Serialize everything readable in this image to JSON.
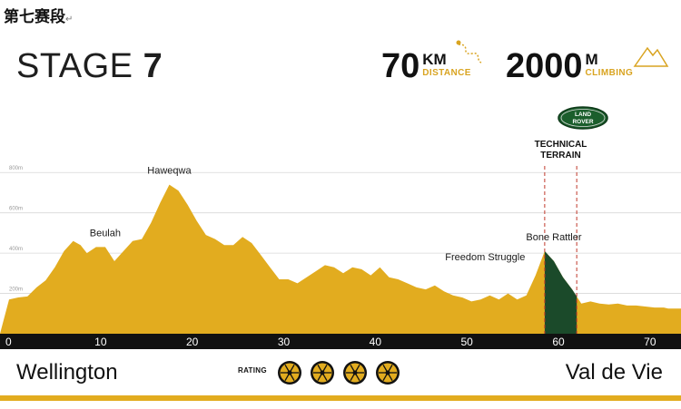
{
  "doc_heading": "第七赛段",
  "stage": {
    "word": "STAGE",
    "number": "7"
  },
  "distance": {
    "value": "70",
    "unit": "KM",
    "label": "DISTANCE"
  },
  "climbing": {
    "value": "2000",
    "unit": "M",
    "label": "CLIMBING"
  },
  "sponsor": {
    "line1": "LAND",
    "line2": "ROVER"
  },
  "section_label": {
    "line1": "TECHNICAL",
    "line2": "TERRAIN"
  },
  "start_town": "Wellington",
  "finish_town": "Val de Vie",
  "rating": {
    "label": "RATING",
    "value": 4,
    "max": 4
  },
  "colors": {
    "profile": "#e2ac1f",
    "technical": "#1b4a2a",
    "axis": "#111111",
    "accent": "#d9a421"
  },
  "chart_data": {
    "type": "area",
    "x_unit": "km",
    "xlim": [
      0,
      72
    ],
    "x_ticks": [
      0,
      10,
      20,
      30,
      40,
      50,
      60,
      70
    ],
    "ylim": [
      0,
      900
    ],
    "y_ticks": [
      {
        "value": 200,
        "label": "200m"
      },
      {
        "value": 400,
        "label": "400m"
      },
      {
        "value": 600,
        "label": "600m"
      },
      {
        "value": 800,
        "label": "800m"
      }
    ],
    "grid": true,
    "profile": [
      [
        0,
        170
      ],
      [
        1,
        180
      ],
      [
        2,
        185
      ],
      [
        3,
        230
      ],
      [
        4,
        265
      ],
      [
        5,
        330
      ],
      [
        6,
        410
      ],
      [
        7,
        460
      ],
      [
        7.8,
        440
      ],
      [
        8.5,
        400
      ],
      [
        9.5,
        430
      ],
      [
        10.5,
        430
      ],
      [
        11.5,
        360
      ],
      [
        12.5,
        410
      ],
      [
        13.5,
        460
      ],
      [
        14.5,
        470
      ],
      [
        15.5,
        550
      ],
      [
        16.5,
        650
      ],
      [
        17.5,
        740
      ],
      [
        18.5,
        710
      ],
      [
        19.5,
        640
      ],
      [
        20.5,
        560
      ],
      [
        21.5,
        490
      ],
      [
        22.5,
        470
      ],
      [
        23.5,
        440
      ],
      [
        24.5,
        440
      ],
      [
        25.5,
        480
      ],
      [
        26.5,
        450
      ],
      [
        27.5,
        390
      ],
      [
        28.5,
        330
      ],
      [
        29.5,
        270
      ],
      [
        30.5,
        270
      ],
      [
        31.5,
        250
      ],
      [
        32.5,
        280
      ],
      [
        33.5,
        310
      ],
      [
        34.5,
        340
      ],
      [
        35.5,
        330
      ],
      [
        36.5,
        300
      ],
      [
        37.5,
        330
      ],
      [
        38.5,
        320
      ],
      [
        39.5,
        290
      ],
      [
        40.5,
        330
      ],
      [
        41.5,
        280
      ],
      [
        42.5,
        270
      ],
      [
        43.5,
        250
      ],
      [
        44.5,
        230
      ],
      [
        45.5,
        220
      ],
      [
        46.5,
        240
      ],
      [
        47.5,
        210
      ],
      [
        48.5,
        190
      ],
      [
        49.5,
        180
      ],
      [
        50.5,
        160
      ],
      [
        51.5,
        170
      ],
      [
        52.5,
        190
      ],
      [
        53.5,
        170
      ],
      [
        54.5,
        200
      ],
      [
        55.5,
        170
      ],
      [
        56.5,
        190
      ],
      [
        57.5,
        290
      ],
      [
        58.5,
        410
      ],
      [
        59.5,
        360
      ],
      [
        60.5,
        280
      ],
      [
        61.5,
        220
      ],
      [
        62.5,
        150
      ],
      [
        63.5,
        160
      ],
      [
        64.5,
        150
      ],
      [
        65.5,
        145
      ],
      [
        66.5,
        150
      ],
      [
        67.5,
        140
      ],
      [
        68.5,
        140
      ],
      [
        69.5,
        135
      ],
      [
        70.5,
        130
      ],
      [
        71.5,
        130
      ],
      [
        72,
        125
      ]
    ],
    "highlight": {
      "label": "TECHNICAL TERRAIN",
      "from": 58.5,
      "to": 62
    },
    "annotations": [
      {
        "text": "Haweqwa",
        "x": 17.5,
        "y": 740
      },
      {
        "text": "Beulah",
        "x": 10.5,
        "y": 430
      },
      {
        "text": "Freedom Struggle",
        "x": 52,
        "y": 310
      },
      {
        "text": "Bone Rattler",
        "x": 59.5,
        "y": 410
      }
    ]
  }
}
